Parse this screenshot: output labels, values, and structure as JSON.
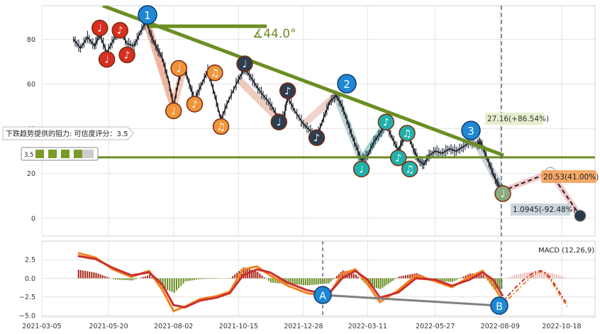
{
  "chart_data": {
    "type": "line",
    "x_tick_labels": [
      "2021-03-05",
      "2021-05-20",
      "2021-08-02",
      "2021-10-15",
      "2021-12-28",
      "2022-03-11",
      "2022-05-27",
      "2022-08-09",
      "2022-10-18"
    ],
    "x_range": [
      "2021-03-05",
      "2022-11-25"
    ],
    "price_panel": {
      "ylim": [
        -8,
        95
      ],
      "y_ticks": [
        0,
        20,
        40,
        60,
        80
      ],
      "series": [
        {
          "x": "2021-04-10",
          "y": 80
        },
        {
          "x": "2021-04-18",
          "y": 76
        },
        {
          "x": "2021-04-26",
          "y": 81
        },
        {
          "x": "2021-05-04",
          "y": 77
        },
        {
          "x": "2021-05-10",
          "y": 82
        },
        {
          "x": "2021-05-18",
          "y": 74
        },
        {
          "x": "2021-05-26",
          "y": 80
        },
        {
          "x": "2021-06-02",
          "y": 84
        },
        {
          "x": "2021-06-10",
          "y": 78
        },
        {
          "x": "2021-06-18",
          "y": 77
        },
        {
          "x": "2021-06-25",
          "y": 83
        },
        {
          "x": "2021-07-02",
          "y": 88
        },
        {
          "x": "2021-07-08",
          "y": 81
        },
        {
          "x": "2021-07-14",
          "y": 76
        },
        {
          "x": "2021-07-20",
          "y": 72
        },
        {
          "x": "2021-07-27",
          "y": 62
        },
        {
          "x": "2021-08-02",
          "y": 50
        },
        {
          "x": "2021-08-08",
          "y": 62
        },
        {
          "x": "2021-08-14",
          "y": 68
        },
        {
          "x": "2021-08-20",
          "y": 60
        },
        {
          "x": "2021-08-26",
          "y": 53
        },
        {
          "x": "2021-09-02",
          "y": 59
        },
        {
          "x": "2021-09-10",
          "y": 66
        },
        {
          "x": "2021-09-18",
          "y": 55
        },
        {
          "x": "2021-09-25",
          "y": 44
        },
        {
          "x": "2021-10-04",
          "y": 53
        },
        {
          "x": "2021-10-15",
          "y": 62
        },
        {
          "x": "2021-10-22",
          "y": 67
        },
        {
          "x": "2021-10-29",
          "y": 63
        },
        {
          "x": "2021-11-06",
          "y": 58
        },
        {
          "x": "2021-11-14",
          "y": 54
        },
        {
          "x": "2021-11-22",
          "y": 50
        },
        {
          "x": "2021-11-30",
          "y": 44
        },
        {
          "x": "2021-12-06",
          "y": 46
        },
        {
          "x": "2021-12-10",
          "y": 54
        },
        {
          "x": "2021-12-18",
          "y": 48
        },
        {
          "x": "2021-12-28",
          "y": 42
        },
        {
          "x": "2022-01-05",
          "y": 39
        },
        {
          "x": "2022-01-12",
          "y": 36
        },
        {
          "x": "2022-01-20",
          "y": 45
        },
        {
          "x": "2022-01-27",
          "y": 52
        },
        {
          "x": "2022-02-03",
          "y": 55
        },
        {
          "x": "2022-02-10",
          "y": 50
        },
        {
          "x": "2022-02-17",
          "y": 42
        },
        {
          "x": "2022-02-24",
          "y": 34
        },
        {
          "x": "2022-03-04",
          "y": 26
        },
        {
          "x": "2022-03-11",
          "y": 28
        },
        {
          "x": "2022-03-18",
          "y": 34
        },
        {
          "x": "2022-03-25",
          "y": 38
        },
        {
          "x": "2022-04-01",
          "y": 42
        },
        {
          "x": "2022-04-08",
          "y": 36
        },
        {
          "x": "2022-04-15",
          "y": 30
        },
        {
          "x": "2022-04-20",
          "y": 35
        },
        {
          "x": "2022-04-25",
          "y": 39
        },
        {
          "x": "2022-05-02",
          "y": 31
        },
        {
          "x": "2022-05-08",
          "y": 26
        },
        {
          "x": "2022-05-14",
          "y": 24
        },
        {
          "x": "2022-05-20",
          "y": 28
        },
        {
          "x": "2022-05-27",
          "y": 30
        },
        {
          "x": "2022-06-04",
          "y": 29
        },
        {
          "x": "2022-06-12",
          "y": 31
        },
        {
          "x": "2022-06-20",
          "y": 30
        },
        {
          "x": "2022-06-28",
          "y": 32
        },
        {
          "x": "2022-07-06",
          "y": 34
        },
        {
          "x": "2022-07-14",
          "y": 33
        },
        {
          "x": "2022-07-18",
          "y": 34
        },
        {
          "x": "2022-07-24",
          "y": 28
        },
        {
          "x": "2022-07-30",
          "y": 22
        },
        {
          "x": "2022-08-05",
          "y": 16
        },
        {
          "x": "2022-08-10",
          "y": 13
        },
        {
          "x": "2022-08-12",
          "y": 12
        }
      ],
      "trend_line_label": "∡44.0°",
      "resistance_note": "下跌趋势提供的阻力: 可信度评分：3.5",
      "rating_text": "3.5",
      "projections": [
        {
          "label": "27.16(+86.54%)",
          "date": "2022-08-12",
          "value": 27.16
        },
        {
          "label": "20.53(41.00%)",
          "date": "2022-10-05",
          "value": 20.53
        },
        {
          "label": "1.0945(-92.48%)",
          "date": "2022-11-08",
          "value": 1.0945
        }
      ],
      "wave_labels": [
        "1",
        "2",
        "3"
      ],
      "support_level": 27.2
    },
    "macd_panel": {
      "title": "MACD (12,26,9)",
      "ylim": [
        -5.2,
        5
      ],
      "y_ticks": [
        -5.0,
        -2.5,
        0.0,
        2.5
      ],
      "y_tick_labels": [
        "−5.0",
        "−2.5",
        "0.0",
        "2.5"
      ],
      "divergence_labels": [
        "A",
        "B"
      ],
      "macd": [
        {
          "x": "2021-04-15",
          "y": 3.4
        },
        {
          "x": "2021-05-05",
          "y": 2.8
        },
        {
          "x": "2021-05-25",
          "y": 1.2
        },
        {
          "x": "2021-06-15",
          "y": 0.2
        },
        {
          "x": "2021-07-05",
          "y": 1.0
        },
        {
          "x": "2021-07-20",
          "y": -1.5
        },
        {
          "x": "2021-08-02",
          "y": -4.4
        },
        {
          "x": "2021-08-15",
          "y": -3.8
        },
        {
          "x": "2021-09-01",
          "y": -2.8
        },
        {
          "x": "2021-09-20",
          "y": -2.4
        },
        {
          "x": "2021-10-05",
          "y": -1.8
        },
        {
          "x": "2021-10-20",
          "y": 1.2
        },
        {
          "x": "2021-11-05",
          "y": 1.6
        },
        {
          "x": "2021-11-20",
          "y": 0.4
        },
        {
          "x": "2021-12-10",
          "y": -1.0
        },
        {
          "x": "2022-01-01",
          "y": -2.0
        },
        {
          "x": "2022-01-25",
          "y": -2.4
        },
        {
          "x": "2022-02-10",
          "y": 0.6
        },
        {
          "x": "2022-02-25",
          "y": 1.2
        },
        {
          "x": "2022-03-11",
          "y": -0.8
        },
        {
          "x": "2022-03-25",
          "y": -3.2
        },
        {
          "x": "2022-04-15",
          "y": -1.6
        },
        {
          "x": "2022-05-05",
          "y": 0.4
        },
        {
          "x": "2022-05-27",
          "y": -0.4
        },
        {
          "x": "2022-06-15",
          "y": -1.2
        },
        {
          "x": "2022-07-05",
          "y": 0.2
        },
        {
          "x": "2022-07-20",
          "y": 1.0
        },
        {
          "x": "2022-08-01",
          "y": -1.0
        },
        {
          "x": "2022-08-12",
          "y": -3.0
        }
      ],
      "signal": [
        {
          "x": "2021-04-15",
          "y": 3.0
        },
        {
          "x": "2021-05-05",
          "y": 2.6
        },
        {
          "x": "2021-05-25",
          "y": 1.4
        },
        {
          "x": "2021-06-15",
          "y": 0.4
        },
        {
          "x": "2021-07-05",
          "y": 0.8
        },
        {
          "x": "2021-07-20",
          "y": -0.8
        },
        {
          "x": "2021-08-02",
          "y": -3.6
        },
        {
          "x": "2021-08-15",
          "y": -3.9
        },
        {
          "x": "2021-09-01",
          "y": -3.0
        },
        {
          "x": "2021-09-20",
          "y": -2.6
        },
        {
          "x": "2021-10-05",
          "y": -2.0
        },
        {
          "x": "2021-10-20",
          "y": 0.4
        },
        {
          "x": "2021-11-05",
          "y": 1.2
        },
        {
          "x": "2021-11-20",
          "y": 0.8
        },
        {
          "x": "2021-12-10",
          "y": -0.6
        },
        {
          "x": "2022-01-01",
          "y": -1.6
        },
        {
          "x": "2022-01-25",
          "y": -2.2
        },
        {
          "x": "2022-02-10",
          "y": 0.0
        },
        {
          "x": "2022-02-25",
          "y": 1.0
        },
        {
          "x": "2022-03-11",
          "y": -0.2
        },
        {
          "x": "2022-03-25",
          "y": -2.6
        },
        {
          "x": "2022-04-15",
          "y": -1.9
        },
        {
          "x": "2022-05-05",
          "y": 0.0
        },
        {
          "x": "2022-05-27",
          "y": -0.2
        },
        {
          "x": "2022-06-15",
          "y": -1.0
        },
        {
          "x": "2022-07-05",
          "y": -0.2
        },
        {
          "x": "2022-07-20",
          "y": 0.8
        },
        {
          "x": "2022-08-01",
          "y": -0.2
        },
        {
          "x": "2022-08-12",
          "y": -2.4
        }
      ]
    }
  }
}
